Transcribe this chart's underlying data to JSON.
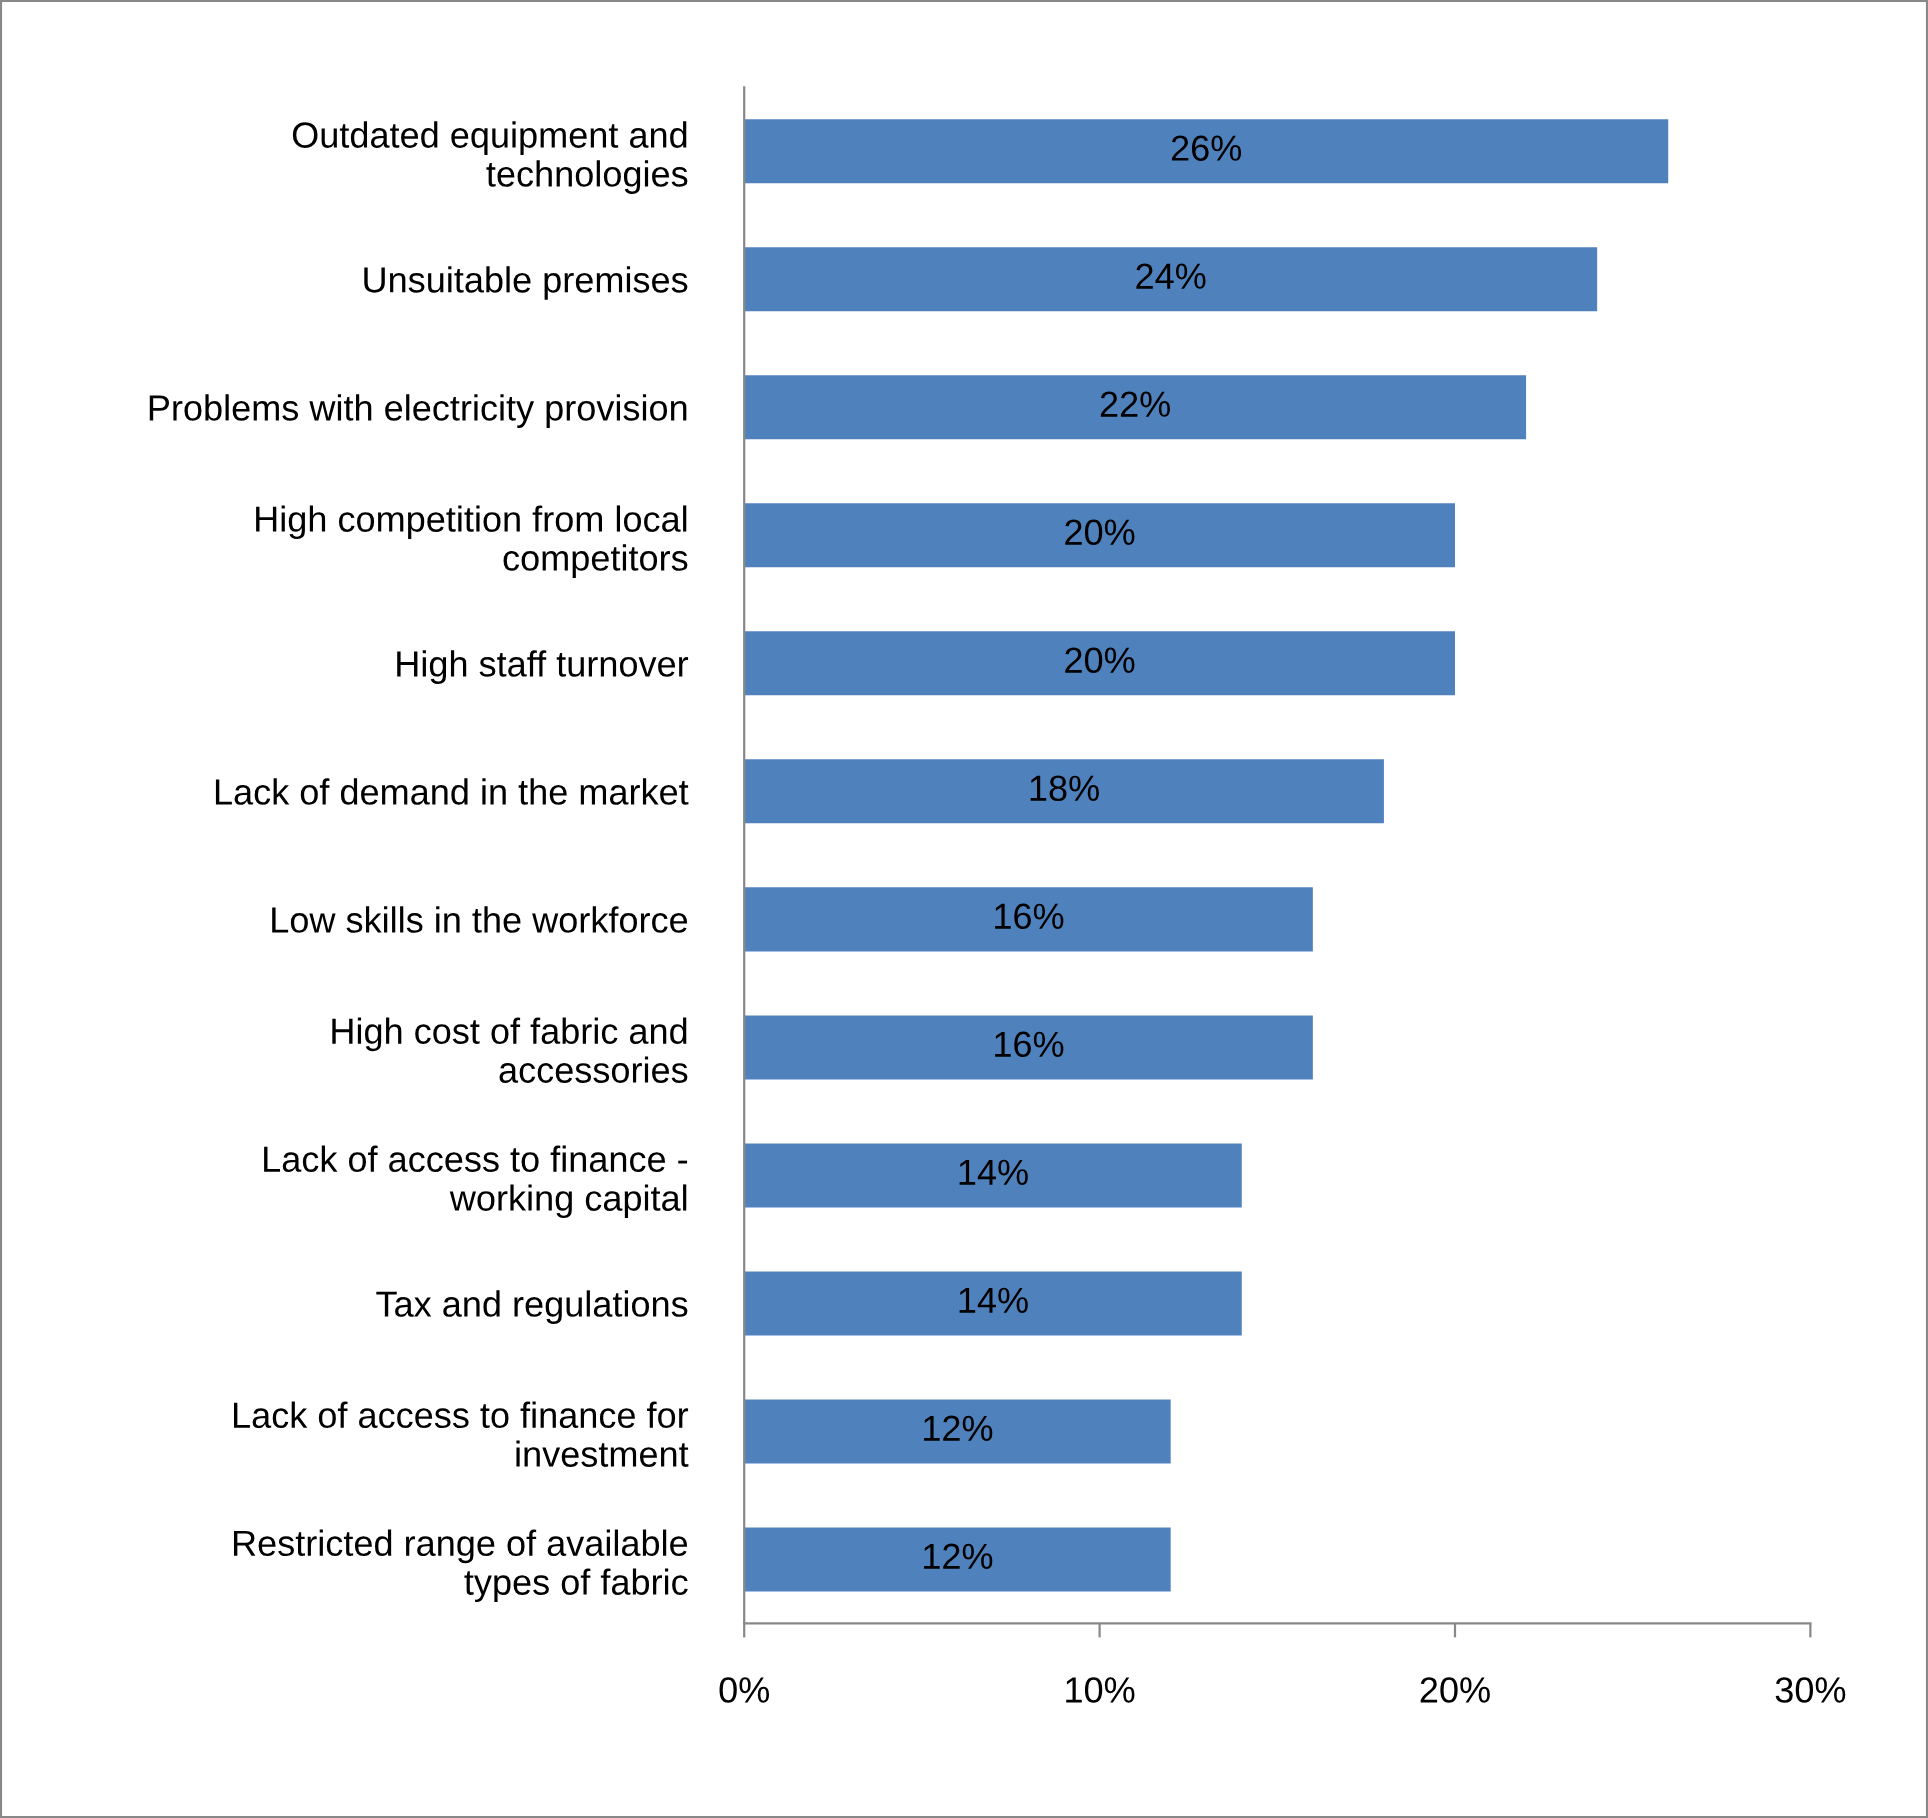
{
  "chart_data": {
    "type": "bar",
    "orientation": "horizontal",
    "categories": [
      "Outdated equipment and\ntechnologies",
      "Unsuitable premises",
      "Problems with electricity provision",
      "High competition from local\ncompetitors",
      "High staff turnover",
      "Lack of demand in the market",
      "Low skills in the workforce",
      "High cost of fabric and\naccessories",
      "Lack of access to finance -\nworking capital",
      "Tax and regulations",
      "Lack of access to finance for\ninvestment",
      "Restricted range of available\ntypes of fabric"
    ],
    "values": [
      26,
      24,
      22,
      20,
      20,
      18,
      16,
      16,
      14,
      14,
      12,
      12
    ],
    "value_labels": [
      "26%",
      "24%",
      "22%",
      "20%",
      "20%",
      "18%",
      "16%",
      "16%",
      "14%",
      "14%",
      "12%",
      "12%"
    ],
    "color": "#4f81bd",
    "xlim": [
      0,
      30
    ],
    "xticks": [
      {
        "value": 0,
        "label": "0%"
      },
      {
        "value": 10,
        "label": "10%"
      },
      {
        "value": 20,
        "label": "20%"
      },
      {
        "value": 30,
        "label": "30%"
      }
    ],
    "grid": false,
    "legend": false
  }
}
